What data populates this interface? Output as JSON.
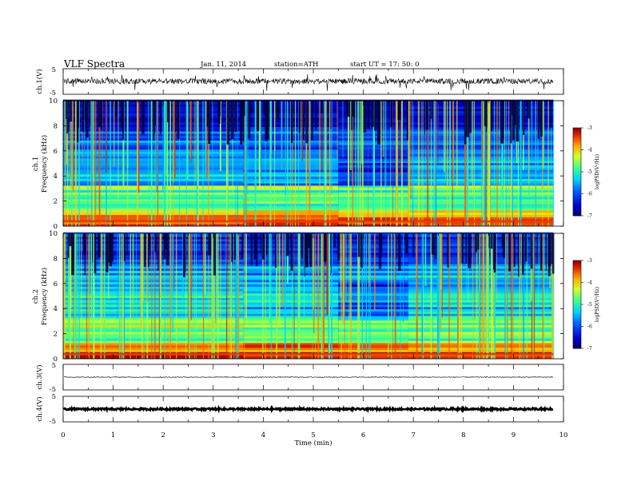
{
  "header": {
    "title": "VLF Spectra",
    "date": "Jan. 11, 2014",
    "station": "station=ATH",
    "start": "start  UT =   17: 50: 0"
  },
  "chart_data": [
    {
      "id": "ch1_wave",
      "type": "line",
      "ylabel": "ch.1(V)",
      "ylim": [
        -5,
        5
      ],
      "yticks": [
        "5",
        "-5"
      ],
      "xlim": [
        0,
        10
      ],
      "x_data_end": 9.8,
      "trace": {
        "baseline": 0.1,
        "noise": 1.1,
        "spike_max": -3.8,
        "color": "#000000"
      }
    },
    {
      "id": "ch1_spec",
      "type": "heatmap",
      "ylabel": "Frequency  (kHz)",
      "ylabel2": "ch.1",
      "ylim": [
        0,
        10
      ],
      "yticks": [
        "0",
        "2",
        "4",
        "6",
        "8",
        "10"
      ],
      "xlim": [
        0,
        10
      ],
      "x_data_end": 9.8,
      "colorbar": {
        "label": "logPSD(V²/Hz)",
        "ticks": [
          "-3",
          "-4",
          "-5",
          "-6",
          "-7"
        ],
        "range": [
          -7,
          -3
        ]
      }
    },
    {
      "id": "ch2_spec",
      "type": "heatmap",
      "ylabel": "Frequency  (kHz)",
      "ylabel2": "ch.2",
      "ylim": [
        0,
        10
      ],
      "yticks": [
        "0",
        "2",
        "4",
        "6",
        "8",
        "10"
      ],
      "xlim": [
        0,
        10
      ],
      "x_data_end": 9.8,
      "colorbar": {
        "label": "logPSD(V²/Hz)",
        "ticks": [
          "-3",
          "-4",
          "-5",
          "-6",
          "-7"
        ],
        "range": [
          -7,
          -3
        ]
      }
    },
    {
      "id": "ch3_wave",
      "type": "line",
      "ylabel": "ch.3(V)",
      "ylim": [
        -5,
        5
      ],
      "yticks": [
        "5",
        "-5"
      ],
      "xlim": [
        0,
        10
      ],
      "x_data_end": 9.8,
      "trace": {
        "baseline": 0.0,
        "noise": 0.15,
        "color": "#000000"
      }
    },
    {
      "id": "ch4_wave",
      "type": "line",
      "ylabel": "ch.4(V)",
      "ylim": [
        -5,
        5
      ],
      "yticks": [
        "5",
        "-5"
      ],
      "xlim": [
        0,
        10
      ],
      "x_data_end": 9.8,
      "trace": {
        "baseline": 0.0,
        "noise": 0.35,
        "color": "#000000"
      }
    }
  ],
  "xaxis": {
    "label": "Time  (min)",
    "ticks": [
      "0",
      "1",
      "2",
      "3",
      "4",
      "5",
      "6",
      "7",
      "8",
      "9",
      "10"
    ]
  }
}
